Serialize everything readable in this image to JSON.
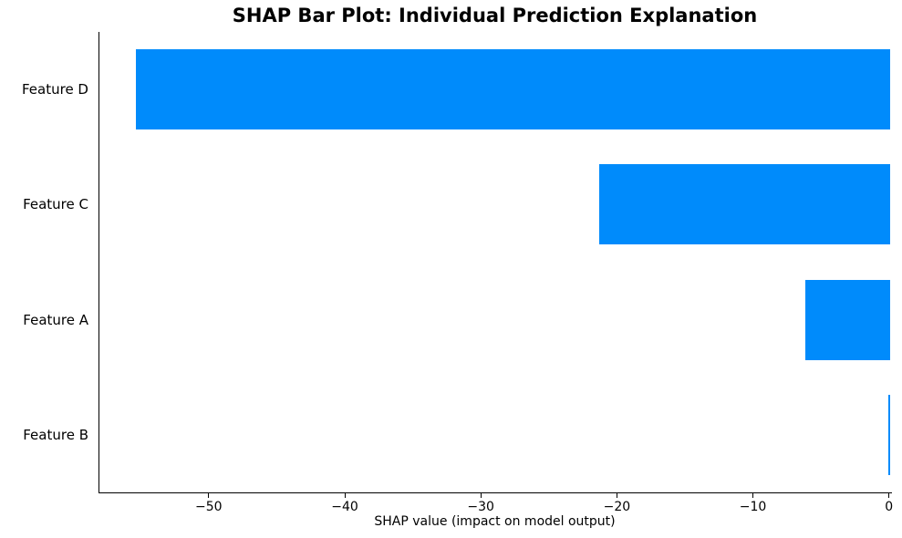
{
  "chart_data": {
    "type": "bar",
    "orientation": "horizontal",
    "title": "SHAP Bar Plot: Individual Prediction Explanation",
    "xlabel": "SHAP value (impact on model output)",
    "ylabel": "",
    "categories": [
      "Feature D",
      "Feature C",
      "Feature A",
      "Feature B"
    ],
    "values": [
      -55.4,
      -21.4,
      -6.2,
      -0.1
    ],
    "bar_color": "#008bfb",
    "axis_color": "#000000",
    "background_color": "#ffffff",
    "xlim": [
      -58.1,
      0.15
    ],
    "xticks": [
      -50,
      -40,
      -30,
      -20,
      -10,
      0
    ],
    "xtick_labels": [
      "−50",
      "−40",
      "−30",
      "−20",
      "−10",
      "0"
    ],
    "grid": false,
    "legend": "none"
  }
}
